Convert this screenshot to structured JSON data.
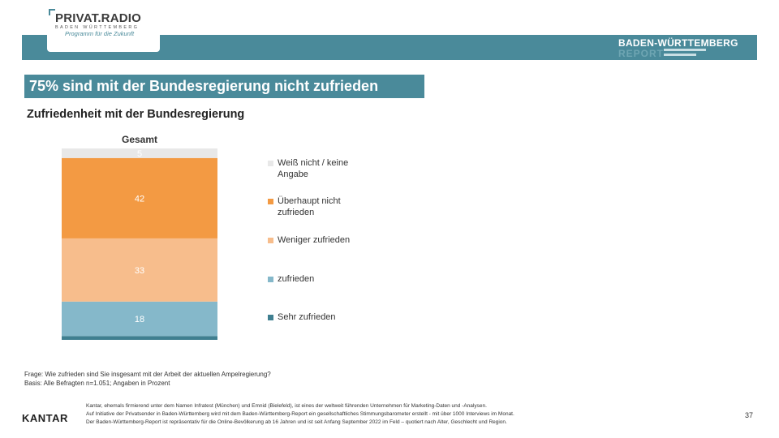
{
  "logo": {
    "name": "PRIVAT.RADIO",
    "region": "BADEN WÜRTTEMBERG",
    "tagline": "Programm für die Zukunft"
  },
  "report_brand": {
    "title": "BADEN-WÜRTTEMBERG",
    "subtitle": "REPORT"
  },
  "headline": "75% sind mit der Bundesregierung nicht zufrieden",
  "subhead": "Zufriedenheit mit der Bundesregierung",
  "chart_data": {
    "type": "bar",
    "stacked": true,
    "categories": [
      "Gesamt"
    ],
    "series": [
      {
        "name": "Sehr zufrieden",
        "values": [
          2
        ],
        "color": "#3f7f90"
      },
      {
        "name": "zufrieden",
        "values": [
          18
        ],
        "color": "#85b8ca"
      },
      {
        "name": "Weniger zufrieden",
        "values": [
          33
        ],
        "color": "#f7bd8c"
      },
      {
        "name": "Überhaupt nicht zufrieden",
        "values": [
          42
        ],
        "color": "#f39a43"
      },
      {
        "name": "Weiß nicht / keine Angabe",
        "values": [
          5
        ],
        "color": "#e8e8e8"
      }
    ],
    "legend": [
      {
        "label_lines": [
          "Weiß nicht / keine",
          "Angabe"
        ],
        "color": "#e8e8e8"
      },
      {
        "label_lines": [
          "Überhaupt nicht",
          "zufrieden"
        ],
        "color": "#f39a43"
      },
      {
        "label_lines": [
          "Weniger zufrieden"
        ],
        "color": "#f7bd8c"
      },
      {
        "label_lines": [
          "zufrieden"
        ],
        "color": "#85b8ca"
      },
      {
        "label_lines": [
          "Sehr zufrieden"
        ],
        "color": "#3f7f90"
      }
    ],
    "legend_position": "right",
    "grid": false
  },
  "footnote": {
    "question": "Frage: Wie zufrieden sind Sie insgesamt mit der Arbeit der aktuellen Ampelregierung?",
    "base": "Basis: Alle Befragten n=1.051; Angaben in Prozent"
  },
  "footer": {
    "brand": "KANTAR",
    "about_line1": "Kantar, ehemals firmierend unter dem Namen Infratest (München) und Emnid (Bielefeld), ist eines der weltweit führenden Unternehmen für Marketing-Daten und -Analysen.",
    "about_line2": "Auf Initiative der Privatsender in Baden-Württemberg wird mit dem Baden-Württemberg-Report ein gesellschaftliches Stimmungsbarometer erstellt - mit über 1000 Interviews im Monat.",
    "about_line3": "Der Baden-Württemberg-Report ist repräsentativ für die Online-Bevölkerung ab 16 Jahren und ist seit Anfang September 2022 im Feld – quotiert nach Alter, Geschlecht und Region.",
    "page_number": "37"
  }
}
